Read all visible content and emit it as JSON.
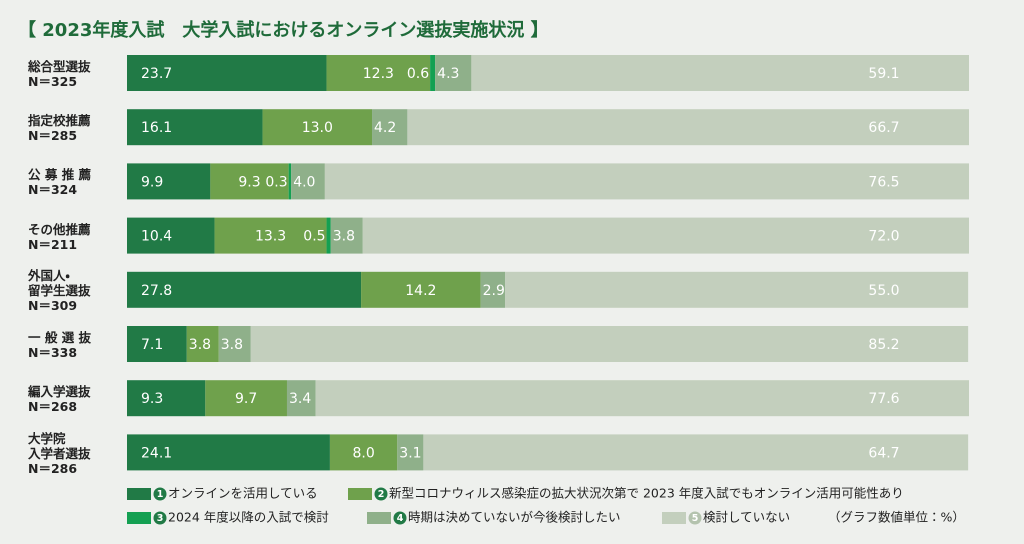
{
  "chart_data": {
    "type": "stacked-bar-horizontal",
    "title": "【 2023年度入試　大学入試におけるオンライン選抜実施状況 】",
    "unit_note": "（グラフ数値単位：%）",
    "categories": [
      "総合型選抜\nN＝325",
      "指定校推薦\nN＝285",
      "公 募 推 薦\nN＝324",
      "その他推薦\nN＝211",
      "外国人・\n留学生選抜\nN＝309",
      "一 般 選 抜\nN＝338",
      "編入学選抜\nN＝268",
      "大学院\n入学者選抜\nN＝286"
    ],
    "xlim": [
      0,
      100
    ],
    "series": [
      {
        "key": "1",
        "name": "オンラインを活用している",
        "color": "#217a46",
        "values": [
          23.7,
          16.1,
          9.9,
          10.4,
          27.8,
          7.1,
          9.3,
          24.1
        ],
        "value_labels": [
          "23.7",
          "16.1",
          "9.9",
          "10.4",
          "27.8",
          "7.1",
          "9.3",
          "24.1"
        ]
      },
      {
        "key": "2",
        "name": "新型コロナウィルス感染症の拡大状況次第で 2023 年度入試でもオンライン活用可能性あり",
        "color": "#6fa14c",
        "values": [
          12.3,
          13.0,
          9.3,
          13.3,
          14.2,
          3.8,
          9.7,
          8.0
        ],
        "value_labels": [
          "12.3",
          "13.0",
          "9.3",
          "13.3",
          "14.2",
          "3.8",
          "9.7",
          "8.0"
        ]
      },
      {
        "key": "3",
        "name": "2024 年度以降の入試で検討",
        "color": "#14a052",
        "values": [
          0.6,
          null,
          0.3,
          0.5,
          null,
          null,
          null,
          null
        ],
        "value_labels": [
          "0.6",
          null,
          "0.3",
          "0.5",
          null,
          null,
          null,
          null
        ]
      },
      {
        "key": "4",
        "name": "時期は決めていないが今後検討したい",
        "color": "#8fb08a",
        "values": [
          4.3,
          4.2,
          4.0,
          3.8,
          2.9,
          3.8,
          3.4,
          3.1
        ],
        "value_labels": [
          "4.3",
          "4.2",
          "4.0",
          "3.8",
          "2.9",
          "3.8",
          "3.4",
          "3.1"
        ]
      },
      {
        "key": "5",
        "name": "検討していない",
        "color": "#c3cfbd",
        "values": [
          59.1,
          66.7,
          76.5,
          72.0,
          55.0,
          85.2,
          77.6,
          64.7
        ],
        "value_labels": [
          "59.1",
          "66.7",
          "76.5",
          "72.0",
          "55.0",
          "85.2",
          "77.6",
          "64.7"
        ]
      }
    ]
  }
}
